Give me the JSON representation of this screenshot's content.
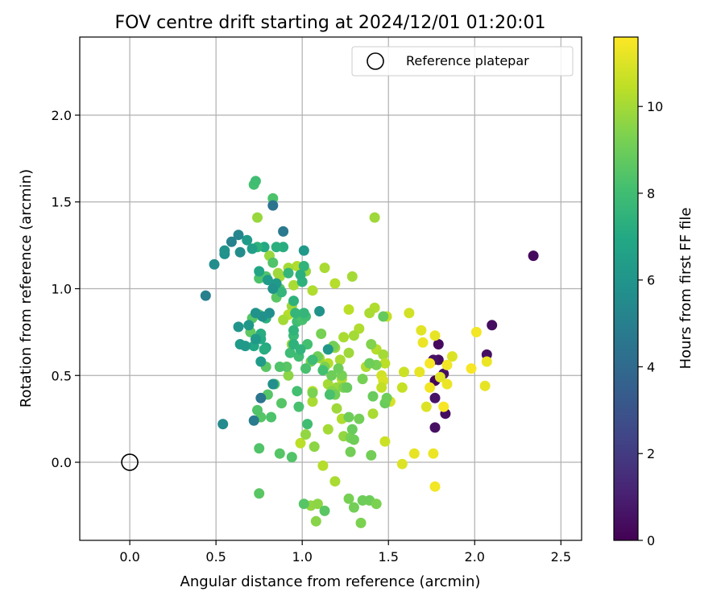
{
  "chart_data": {
    "type": "scatter",
    "title": "FOV centre drift starting at 2024/12/01 01:20:01",
    "xlabel": "Angular distance from reference (arcmin)",
    "ylabel": "Rotation from reference (arcmin)",
    "xlim": [
      -0.29,
      2.62
    ],
    "ylim": [
      -0.45,
      2.45
    ],
    "xticks": [
      0.0,
      0.5,
      1.0,
      1.5,
      2.0,
      2.5
    ],
    "xtick_labels": [
      "0.0",
      "0.5",
      "1.0",
      "1.5",
      "2.0",
      "2.5"
    ],
    "yticks": [
      0.0,
      0.5,
      1.0,
      1.5,
      2.0
    ],
    "ytick_labels": [
      "0.0",
      "0.5",
      "1.0",
      "1.5",
      "2.0"
    ],
    "grid": true,
    "legend": {
      "position": "upper-right",
      "entries": [
        {
          "label": "Reference platepar",
          "marker": "open-circle"
        }
      ]
    },
    "reference_point": {
      "x": 0.0,
      "y": 0.0
    },
    "colorbar": {
      "label": "Hours from first FF file",
      "colormap": "viridis",
      "range": [
        0,
        11.6
      ],
      "ticks": [
        0,
        2,
        4,
        6,
        8,
        10
      ],
      "tick_labels": [
        "0",
        "2",
        "4",
        "6",
        "8",
        "10"
      ]
    },
    "points": [
      [
        2.34,
        1.19,
        0.3
      ],
      [
        2.1,
        0.79,
        0.4
      ],
      [
        2.07,
        0.62,
        0.5
      ],
      [
        1.79,
        0.68,
        0.3
      ],
      [
        1.79,
        0.59,
        0.4
      ],
      [
        1.76,
        0.59,
        0.6
      ],
      [
        1.82,
        0.51,
        0.5
      ],
      [
        1.77,
        0.37,
        0.6
      ],
      [
        1.83,
        0.28,
        0.4
      ],
      [
        1.77,
        0.2,
        0.5
      ],
      [
        1.77,
        0.47,
        0.2
      ],
      [
        2.01,
        0.75,
        11.4
      ],
      [
        2.07,
        0.58,
        11.3
      ],
      [
        1.98,
        0.54,
        11.5
      ],
      [
        2.06,
        0.44,
        11.2
      ],
      [
        1.87,
        0.61,
        11.0
      ],
      [
        1.84,
        0.56,
        11.4
      ],
      [
        1.84,
        0.45,
        11.3
      ],
      [
        1.8,
        0.49,
        11.1
      ],
      [
        1.82,
        0.32,
        11.5
      ],
      [
        1.77,
        0.73,
        11.2
      ],
      [
        1.69,
        0.76,
        11.1
      ],
      [
        1.7,
        0.69,
        11.3
      ],
      [
        1.74,
        0.57,
        11.5
      ],
      [
        1.68,
        0.52,
        11.2
      ],
      [
        1.74,
        0.43,
        11.4
      ],
      [
        1.72,
        0.32,
        11.0
      ],
      [
        1.76,
        0.05,
        11.3
      ],
      [
        1.77,
        -0.14,
        11.4
      ],
      [
        1.65,
        0.05,
        11.2
      ],
      [
        1.58,
        -0.01,
        11.0
      ],
      [
        1.62,
        0.86,
        10.8
      ],
      [
        1.59,
        0.52,
        10.7
      ],
      [
        1.58,
        0.43,
        10.6
      ],
      [
        1.51,
        0.35,
        10.9
      ],
      [
        1.46,
        0.5,
        10.8
      ],
      [
        1.47,
        0.47,
        10.9
      ],
      [
        1.48,
        0.12,
        10.7
      ],
      [
        1.49,
        0.84,
        10.6
      ],
      [
        1.42,
        0.89,
        10.2
      ],
      [
        1.39,
        0.86,
        10.1
      ],
      [
        1.43,
        0.65,
        10.3
      ],
      [
        1.47,
        0.62,
        10.0
      ],
      [
        1.48,
        0.57,
        10.4
      ],
      [
        1.37,
        0.55,
        10.2
      ],
      [
        1.41,
        0.28,
        10.1
      ],
      [
        1.46,
        0.43,
        10.5
      ],
      [
        1.42,
        1.41,
        9.9
      ],
      [
        1.29,
        1.07,
        10.0
      ],
      [
        1.19,
        1.03,
        10.3
      ],
      [
        1.13,
        1.12,
        10.1
      ],
      [
        1.06,
        0.99,
        10.2
      ],
      [
        1.02,
        1.1,
        9.8
      ],
      [
        1.33,
        0.77,
        10.2
      ],
      [
        1.27,
        0.88,
        10.4
      ],
      [
        1.3,
        0.73,
        10.0
      ],
      [
        1.24,
        0.72,
        10.1
      ],
      [
        1.27,
        0.63,
        9.9
      ],
      [
        1.19,
        0.66,
        9.7
      ],
      [
        1.22,
        0.59,
        10.1
      ],
      [
        1.15,
        0.57,
        10.3
      ],
      [
        1.1,
        0.6,
        9.9
      ],
      [
        1.23,
        0.48,
        10.2
      ],
      [
        1.2,
        0.43,
        9.8
      ],
      [
        1.15,
        0.45,
        10.0
      ],
      [
        1.06,
        0.41,
        10.4
      ],
      [
        1.06,
        0.35,
        10.1
      ],
      [
        1.23,
        0.25,
        10.2
      ],
      [
        1.2,
        0.31,
        9.9
      ],
      [
        1.24,
        0.15,
        9.7
      ],
      [
        1.15,
        0.19,
        10.0
      ],
      [
        1.12,
        -0.02,
        10.3
      ],
      [
        1.19,
        -0.11,
        10.1
      ],
      [
        0.99,
        0.11,
        10.4
      ],
      [
        0.97,
        1.13,
        10.2
      ],
      [
        0.92,
        1.12,
        10.0
      ],
      [
        0.87,
        1.07,
        10.1
      ],
      [
        0.86,
        1.09,
        9.9
      ],
      [
        0.81,
        1.19,
        9.8
      ],
      [
        0.95,
        1.02,
        10.1
      ],
      [
        0.94,
        0.9,
        9.9
      ],
      [
        0.92,
        0.85,
        10.3
      ],
      [
        0.89,
        0.82,
        10.0
      ],
      [
        0.74,
        1.41,
        9.8
      ],
      [
        0.94,
        0.68,
        9.7
      ],
      [
        0.92,
        0.5,
        9.6
      ],
      [
        1.02,
        0.16,
        9.7
      ],
      [
        1.07,
        0.09,
        9.6
      ],
      [
        1.05,
        -0.25,
        9.7
      ],
      [
        1.08,
        -0.34,
        9.5
      ],
      [
        1.09,
        -0.24,
        9.6
      ],
      [
        1.17,
        0.41,
        9.5
      ],
      [
        1.11,
        0.74,
        9.2
      ],
      [
        1.09,
        0.61,
        9.0
      ],
      [
        1.13,
        0.55,
        9.3
      ],
      [
        1.05,
        0.58,
        9.2
      ],
      [
        1.06,
        0.4,
        9.3
      ],
      [
        1.17,
        0.5,
        9.0
      ],
      [
        1.19,
        0.39,
        9.1
      ],
      [
        1.15,
        0.65,
        8.9
      ],
      [
        1.18,
        0.67,
        9.1
      ],
      [
        1.23,
        0.5,
        9.2
      ],
      [
        1.21,
        0.54,
        9.0
      ],
      [
        1.24,
        0.43,
        9.3
      ],
      [
        1.26,
        0.43,
        8.9
      ],
      [
        1.27,
        0.26,
        9.0
      ],
      [
        1.28,
        0.14,
        9.2
      ],
      [
        1.28,
        0.06,
        9.1
      ],
      [
        1.29,
        0.19,
        8.9
      ],
      [
        1.3,
        0.13,
        9.0
      ],
      [
        1.33,
        0.25,
        9.1
      ],
      [
        1.35,
        0.48,
        9.2
      ],
      [
        1.39,
        0.57,
        9.3
      ],
      [
        1.4,
        0.68,
        9.4
      ],
      [
        1.43,
        0.56,
        9.2
      ],
      [
        1.39,
        0.57,
        9.0
      ],
      [
        1.41,
        0.38,
        8.9
      ],
      [
        1.4,
        0.04,
        9.1
      ],
      [
        1.35,
        -0.22,
        9.0
      ],
      [
        1.3,
        -0.26,
        9.1
      ],
      [
        1.27,
        -0.21,
        9.2
      ],
      [
        1.34,
        -0.35,
        9.3
      ],
      [
        1.39,
        -0.22,
        9.0
      ],
      [
        1.43,
        -0.24,
        9.3
      ],
      [
        1.48,
        0.34,
        8.9
      ],
      [
        1.49,
        0.37,
        9.0
      ],
      [
        1.47,
        0.84,
        8.8
      ],
      [
        1.13,
        -0.28,
        8.6
      ],
      [
        1.01,
        -0.24,
        8.5
      ],
      [
        0.94,
        0.03,
        8.4
      ],
      [
        0.87,
        0.05,
        8.5
      ],
      [
        0.75,
        0.08,
        8.4
      ],
      [
        0.75,
        -0.18,
        8.6
      ],
      [
        0.76,
        0.26,
        8.5
      ],
      [
        0.74,
        0.3,
        8.4
      ],
      [
        0.82,
        0.26,
        8.3
      ],
      [
        0.88,
        0.34,
        8.5
      ],
      [
        0.91,
        0.55,
        8.6
      ],
      [
        0.87,
        0.55,
        8.4
      ],
      [
        0.84,
        0.45,
        8.3
      ],
      [
        0.8,
        0.39,
        8.5
      ],
      [
        0.79,
        0.55,
        8.6
      ],
      [
        0.7,
        0.75,
        8.7
      ],
      [
        0.71,
        0.83,
        8.5
      ],
      [
        0.75,
        0.85,
        8.6
      ],
      [
        0.79,
        1.07,
        8.4
      ],
      [
        0.75,
        1.06,
        8.3
      ],
      [
        0.85,
        0.95,
        8.6
      ],
      [
        0.87,
        1.0,
        8.5
      ],
      [
        0.83,
        1.15,
        8.4
      ],
      [
        0.83,
        1.52,
        8.3
      ],
      [
        0.72,
        1.6,
        8.1
      ],
      [
        0.73,
        1.62,
        8.0
      ],
      [
        0.97,
        0.81,
        8.0
      ],
      [
        0.99,
        0.84,
        8.1
      ],
      [
        1.0,
        0.82,
        8.2
      ],
      [
        1.02,
        0.84,
        8.0
      ],
      [
        1.03,
        0.68,
        8.1
      ],
      [
        1.02,
        0.54,
        8.2
      ],
      [
        0.98,
        0.61,
        8.0
      ],
      [
        0.97,
        0.41,
        8.1
      ],
      [
        0.98,
        0.32,
        8.2
      ],
      [
        1.03,
        0.22,
        8.0
      ],
      [
        1.06,
        0.59,
        7.9
      ],
      [
        1.16,
        0.39,
        8.2
      ],
      [
        1.12,
        0.53,
        8.1
      ],
      [
        0.95,
        0.73,
        7.8
      ],
      [
        0.93,
        0.63,
        7.9
      ],
      [
        0.96,
        0.86,
        7.6
      ],
      [
        0.95,
        0.76,
        7.5
      ],
      [
        0.95,
        0.68,
        7.4
      ],
      [
        0.99,
        0.65,
        7.5
      ],
      [
        1.01,
        0.86,
        7.6
      ],
      [
        1.0,
        1.04,
        7.4
      ],
      [
        1.01,
        1.13,
        7.5
      ],
      [
        0.99,
        1.08,
        7.3
      ],
      [
        0.92,
        1.09,
        7.6
      ],
      [
        0.95,
        0.93,
        7.4
      ],
      [
        0.88,
        0.98,
        7.6
      ],
      [
        0.89,
        1.24,
        7.2
      ],
      [
        0.85,
        1.24,
        7.3
      ],
      [
        0.78,
        1.24,
        7.0
      ],
      [
        0.74,
        1.24,
        7.4
      ],
      [
        0.76,
        0.74,
        7.2
      ],
      [
        0.79,
        0.83,
        7.3
      ],
      [
        0.79,
        0.66,
        7.0
      ],
      [
        0.78,
        0.65,
        7.2
      ],
      [
        0.76,
        0.71,
        7.1
      ],
      [
        0.72,
        0.67,
        6.9
      ],
      [
        0.75,
        1.1,
        6.8
      ],
      [
        0.71,
        1.23,
        6.5
      ],
      [
        0.68,
        1.28,
        6.3
      ],
      [
        0.8,
        1.05,
        6.3
      ],
      [
        0.85,
        1.03,
        6.2
      ],
      [
        0.83,
        1.0,
        5.9
      ],
      [
        0.81,
        0.86,
        5.7
      ],
      [
        0.77,
        0.84,
        5.8
      ],
      [
        0.73,
        0.71,
        6.2
      ],
      [
        0.69,
        0.79,
        6.1
      ],
      [
        0.64,
        0.68,
        6.3
      ],
      [
        0.67,
        0.67,
        6.2
      ],
      [
        0.73,
        0.86,
        5.9
      ],
      [
        0.63,
        0.78,
        6.0
      ],
      [
        0.55,
        1.2,
        5.8
      ],
      [
        0.55,
        1.22,
        5.9
      ],
      [
        0.64,
        1.21,
        5.6
      ],
      [
        0.63,
        1.31,
        5.3
      ],
      [
        0.59,
        1.27,
        5.1
      ],
      [
        0.49,
        1.14,
        5.6
      ],
      [
        1.1,
        0.87,
        5.9
      ],
      [
        1.15,
        0.65,
        6.1
      ],
      [
        1.01,
        1.22,
        6.2
      ],
      [
        0.76,
        0.58,
        6.3
      ],
      [
        0.83,
        0.45,
        5.7
      ],
      [
        0.54,
        0.22,
        5.5
      ],
      [
        0.72,
        0.24,
        4.8
      ],
      [
        0.76,
        0.37,
        4.5
      ],
      [
        0.44,
        0.96,
        5.0
      ],
      [
        0.83,
        1.48,
        4.4
      ],
      [
        0.89,
        1.33,
        4.7
      ]
    ]
  }
}
